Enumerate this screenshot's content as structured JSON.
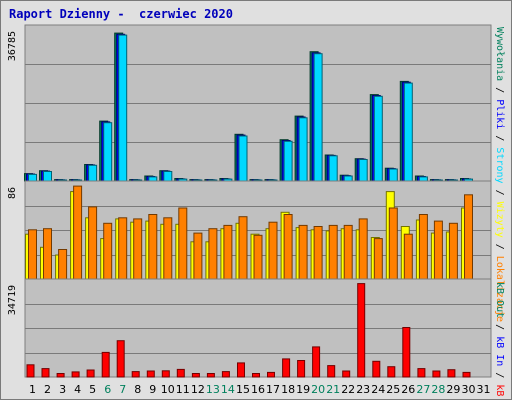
{
  "title": "Raport Dzienny -  czerwiec 2020",
  "colors": {
    "title": "#0000bb",
    "hits": "#00805c",
    "files": "#0000ff",
    "pages": "#00d8ff",
    "visits": "#ffff00",
    "sites": "#ff8000",
    "kb": "#ff0000",
    "weekday": "#000000",
    "weekend": "#00805c",
    "separator": "#000000"
  },
  "chart_data": [
    {
      "type": "bar",
      "name": "traffic",
      "x": [
        1,
        2,
        3,
        4,
        5,
        6,
        7,
        8,
        9,
        10,
        11,
        12,
        13,
        14,
        15,
        16,
        17,
        18,
        19,
        20,
        21,
        22,
        23,
        24,
        25,
        26,
        27,
        28,
        29,
        30,
        31
      ],
      "weekend_days": [
        6,
        7,
        13,
        14,
        20,
        21,
        27,
        28
      ],
      "ylim": [
        0,
        36785
      ],
      "ymax_label": "36785",
      "series": [
        {
          "name": "Wywołania",
          "color": "#00805c",
          "values": [
            1800,
            2500,
            350,
            350,
            4000,
            14500,
            35800,
            350,
            1200,
            2500,
            600,
            350,
            350,
            600,
            11300,
            350,
            350,
            10000,
            15700,
            31300,
            6300,
            1400,
            5400,
            20900,
            3100,
            24100,
            1200,
            350,
            350,
            600,
            0
          ]
        },
        {
          "name": "Pliki",
          "color": "#0000ff",
          "values": [
            1700,
            2400,
            300,
            300,
            3900,
            14300,
            35500,
            300,
            1100,
            2400,
            500,
            300,
            300,
            500,
            11100,
            300,
            300,
            9800,
            15500,
            31000,
            6200,
            1300,
            5300,
            20700,
            3000,
            23900,
            1100,
            300,
            300,
            500,
            0
          ]
        },
        {
          "name": "Strony",
          "color": "#00d8ff",
          "values": [
            1600,
            2300,
            250,
            250,
            3800,
            14100,
            35300,
            250,
            1000,
            2300,
            450,
            250,
            250,
            450,
            10900,
            250,
            250,
            9600,
            15300,
            30800,
            6100,
            1200,
            5200,
            20500,
            2900,
            23700,
            1000,
            250,
            250,
            450,
            0
          ]
        }
      ]
    },
    {
      "type": "bar",
      "name": "visits-sites",
      "x": [
        1,
        2,
        3,
        4,
        5,
        6,
        7,
        8,
        9,
        10,
        11,
        12,
        13,
        14,
        15,
        16,
        17,
        18,
        19,
        20,
        21,
        22,
        23,
        24,
        25,
        26,
        27,
        28,
        29,
        30,
        31
      ],
      "ylim": [
        0,
        86
      ],
      "ymax_label": "86",
      "series": [
        {
          "name": "Wizyty",
          "color": "#ffff00",
          "values": [
            41,
            29,
            22,
            80,
            56,
            37,
            55,
            52,
            53,
            50,
            50,
            34,
            34,
            46,
            51,
            41,
            46,
            61,
            47,
            45,
            44,
            46,
            45,
            38,
            80,
            48,
            54,
            42,
            43,
            65,
            0
          ]
        },
        {
          "name": "Lokalizacje",
          "color": "#ff8000",
          "values": [
            45,
            46,
            27,
            85,
            66,
            51,
            56,
            55,
            59,
            56,
            65,
            42,
            46,
            49,
            57,
            40,
            52,
            59,
            49,
            48,
            49,
            49,
            55,
            37,
            65,
            41,
            59,
            53,
            51,
            77,
            0
          ]
        }
      ]
    },
    {
      "type": "bar",
      "name": "volume",
      "x": [
        1,
        2,
        3,
        4,
        5,
        6,
        7,
        8,
        9,
        10,
        11,
        12,
        13,
        14,
        15,
        16,
        17,
        18,
        19,
        20,
        21,
        22,
        23,
        24,
        25,
        26,
        27,
        28,
        29,
        30,
        31
      ],
      "ylim": [
        0,
        34719
      ],
      "ymax_label": "34719",
      "series": [
        {
          "name": "kB F",
          "color": "#ff0000",
          "values": [
            4500,
            3100,
            1300,
            1900,
            2600,
            9100,
            13400,
            2000,
            2200,
            2300,
            2800,
            1300,
            1300,
            2000,
            5200,
            1300,
            1700,
            6700,
            6100,
            11100,
            4200,
            2200,
            34500,
            5800,
            3800,
            18300,
            3100,
            2200,
            2700,
            1700,
            0
          ]
        }
      ]
    }
  ],
  "legend_right": {
    "top": [
      {
        "text": "Wywołania",
        "color": "#00805c"
      },
      {
        "text": " / ",
        "color": "#000000"
      },
      {
        "text": "Pliki",
        "color": "#0000ff"
      },
      {
        "text": " / ",
        "color": "#000000"
      },
      {
        "text": "Strony",
        "color": "#00d8ff"
      },
      {
        "text": " / ",
        "color": "#000000"
      },
      {
        "text": "Wizyty",
        "color": "#ffff00"
      },
      {
        "text": " / ",
        "color": "#000000"
      },
      {
        "text": "Lokalizacje",
        "color": "#ff8000"
      }
    ],
    "bottom": [
      {
        "text": "kB Out",
        "color": "#00805c"
      },
      {
        "text": " / ",
        "color": "#000000"
      },
      {
        "text": "kB In",
        "color": "#0000ff"
      },
      {
        "text": " / ",
        "color": "#000000"
      },
      {
        "text": "kB F",
        "color": "#ff0000"
      }
    ]
  }
}
